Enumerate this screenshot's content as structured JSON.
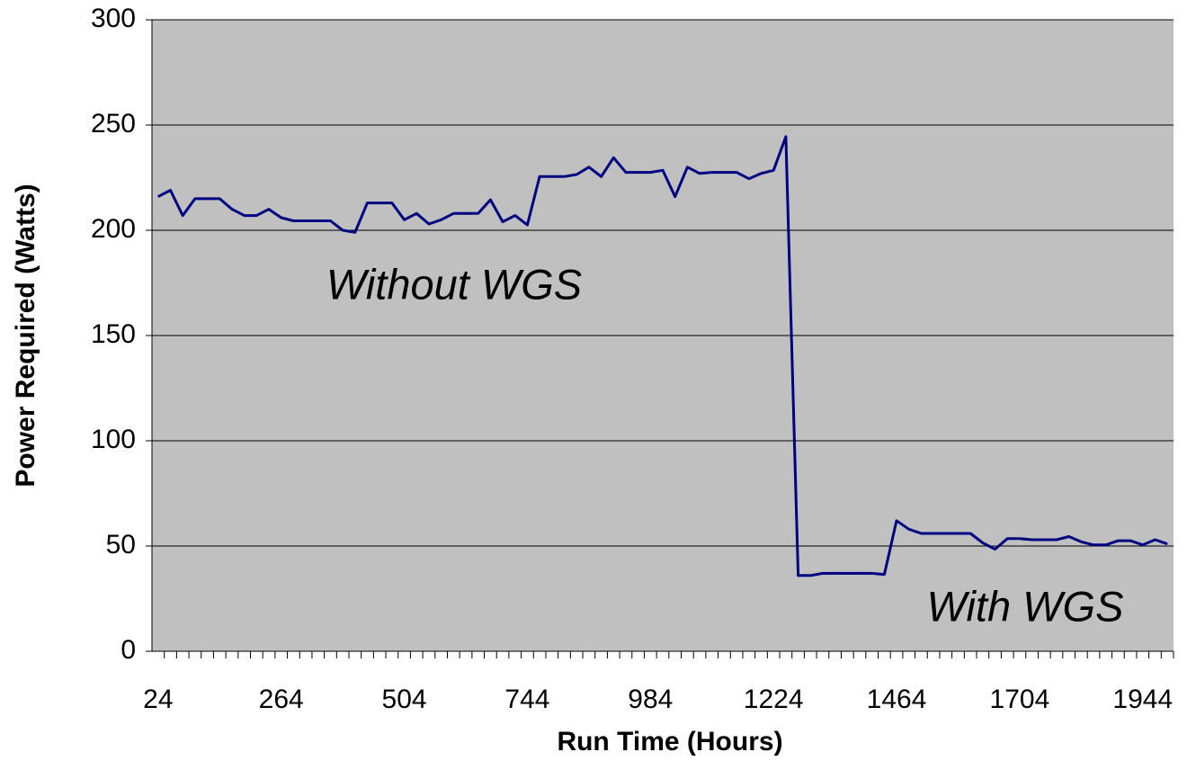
{
  "chart_data": {
    "type": "line",
    "xlabel": "Run Time (Hours)",
    "ylabel": "Power Required (Watts)",
    "annotations": [
      "Without WGS",
      "With WGS"
    ],
    "categories": [
      24,
      null,
      null,
      null,
      null,
      null,
      null,
      null,
      null,
      null,
      264,
      null,
      null,
      null,
      null,
      null,
      null,
      null,
      null,
      null,
      504,
      null,
      null,
      null,
      null,
      null,
      null,
      null,
      null,
      null,
      744,
      null,
      null,
      null,
      null,
      null,
      null,
      null,
      null,
      null,
      984,
      null,
      null,
      null,
      null,
      null,
      null,
      null,
      null,
      null,
      1224,
      null,
      null,
      null,
      null,
      null,
      null,
      null,
      null,
      null,
      1464,
      null,
      null,
      null,
      null,
      null,
      null,
      null,
      null,
      null,
      1704,
      null,
      null,
      null,
      null,
      null,
      null,
      null,
      null,
      null,
      1944,
      null,
      null
    ],
    "values": [
      216,
      219,
      207,
      215,
      215,
      215,
      210,
      207,
      207,
      210,
      206,
      204.5,
      204.5,
      204.5,
      204.5,
      200,
      199,
      213,
      213,
      213,
      205,
      208,
      203,
      205,
      208,
      208,
      208,
      214.5,
      204,
      207,
      202.5,
      225.5,
      225.5,
      225.5,
      226.5,
      230,
      225.5,
      234.5,
      227.5,
      227.5,
      227.5,
      228.5,
      216,
      230,
      227,
      227.5,
      227.5,
      227.5,
      224.5,
      227,
      228.5,
      244.5,
      36,
      36,
      37,
      37,
      37,
      37,
      37,
      36.5,
      62,
      58,
      56,
      56,
      56,
      56,
      56,
      51.5,
      48.5,
      53.5,
      53.5,
      53,
      53,
      53,
      54.5,
      52,
      50.5,
      50.5,
      52.5,
      52.5,
      50.5,
      53,
      51
    ],
    "color": "#000080",
    "ylim": [
      0,
      300
    ],
    "yticks": [
      0,
      50,
      100,
      150,
      200,
      250,
      300
    ],
    "grid": true
  }
}
